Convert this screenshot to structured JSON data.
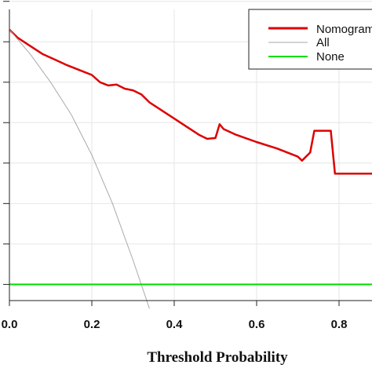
{
  "chart_data": {
    "type": "line",
    "title": "",
    "xlabel": "Threshold Probability",
    "ylabel": "",
    "xlim": [
      0.0,
      0.88
    ],
    "ylim": [
      -0.02,
      0.34
    ],
    "grid": true,
    "x_ticks": [
      0.0,
      0.2,
      0.4,
      0.6,
      0.8
    ],
    "x_tick_labels": [
      "0.0",
      "0.2",
      "0.4",
      "0.6",
      "0.8"
    ],
    "legend": {
      "placement": "top-right",
      "entries": [
        "Nomogram",
        "All",
        "None"
      ]
    },
    "series": [
      {
        "name": "Nomogram",
        "color": "#dd0000",
        "x": [
          0.0,
          0.02,
          0.05,
          0.08,
          0.11,
          0.14,
          0.17,
          0.2,
          0.22,
          0.24,
          0.26,
          0.28,
          0.3,
          0.32,
          0.34,
          0.37,
          0.4,
          0.43,
          0.46,
          0.48,
          0.5,
          0.51,
          0.52,
          0.55,
          0.6,
          0.65,
          0.7,
          0.71,
          0.73,
          0.74,
          0.77,
          0.78,
          0.79,
          0.83,
          0.88
        ],
        "y": [
          0.315,
          0.305,
          0.295,
          0.285,
          0.278,
          0.271,
          0.265,
          0.259,
          0.25,
          0.246,
          0.247,
          0.242,
          0.24,
          0.235,
          0.225,
          0.215,
          0.205,
          0.195,
          0.185,
          0.18,
          0.181,
          0.198,
          0.192,
          0.185,
          0.176,
          0.168,
          0.158,
          0.153,
          0.163,
          0.19,
          0.19,
          0.19,
          0.137,
          0.137,
          0.137
        ]
      },
      {
        "name": "All",
        "color": "#aaaaaa",
        "x": [
          0.0,
          0.05,
          0.1,
          0.15,
          0.2,
          0.25,
          0.3,
          0.34
        ],
        "y": [
          0.315,
          0.285,
          0.25,
          0.21,
          0.16,
          0.1,
          0.03,
          -0.03
        ]
      },
      {
        "name": "None",
        "color": "#00dd00",
        "x": [
          0.0,
          0.88
        ],
        "y": [
          0.0,
          0.0
        ]
      }
    ]
  }
}
